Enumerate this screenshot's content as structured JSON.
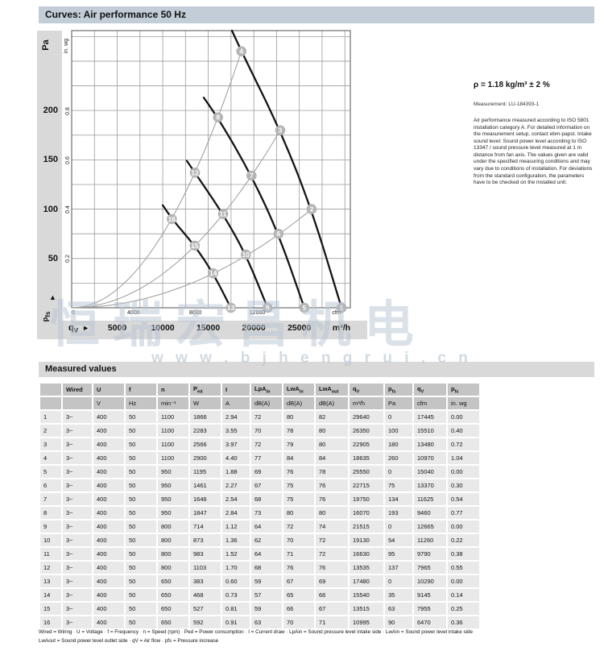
{
  "page": {
    "title_bar": "Curves: Air performance 50 Hz",
    "watermark_line1": "恒瑞宏昌机电",
    "watermark_line2": "w w w . b j h e n g r u i . c n"
  },
  "right_panel": {
    "density_line": "ρ = 1.18 kg/m³ ± 2 %",
    "measurement_line": "Measurement: LU-184393-1",
    "note": "Air performance measured according to ISO 5801 installation category A. For detailed information on the measurement setup, contact ebm-papst. Intake sound level: Sound power level according to ISO 13347 / sound pressure level measured at 1 m distance from fan axis. The values given are valid under the specified measuring conditions and may vary due to conditions of installation. For deviations from the standard configuration, the parameters have to be checked on the installed unit."
  },
  "chart_data": {
    "type": "line",
    "title": "Curves: Air performance 50 Hz",
    "x_axis": {
      "quantity_symbol": "q",
      "quantity_sub": "V",
      "arrow": "►",
      "primary_unit": "m³/h",
      "primary_ticks": [
        5000,
        10000,
        15000,
        20000,
        25000
      ],
      "secondary_unit": "cfm",
      "secondary_ticks": [
        0,
        4000,
        8000,
        12000
      ],
      "max_m3h": 30600,
      "m3h_per_cfm": 1.699
    },
    "y_axis": {
      "quantity_symbol": "p",
      "quantity_sub": "fs",
      "arrow": "▲",
      "primary_unit": "Pa",
      "primary_ticks": [
        50,
        100,
        150,
        200
      ],
      "secondary_unit": "in. wg",
      "secondary_ticks": [
        0.2,
        0.4,
        0.6,
        0.8
      ],
      "max_pa": 281,
      "pa_per_inwg": 248.84
    },
    "grid": {
      "x_step_m3h": 2500,
      "y_step_pa": 25
    },
    "fan_curves": [
      {
        "rpm": 1100,
        "start_point": [
          17600,
          281
        ],
        "points": [
          {
            "n": 4,
            "qv": 18635,
            "pa": 260
          },
          {
            "n": 3,
            "qv": 22905,
            "pa": 180
          },
          {
            "n": 2,
            "qv": 26350,
            "pa": 100
          },
          {
            "n": 1,
            "qv": 29640,
            "pa": 0
          }
        ]
      },
      {
        "rpm": 950,
        "start_point": [
          14500,
          213
        ],
        "points": [
          {
            "n": 8,
            "qv": 16070,
            "pa": 193
          },
          {
            "n": 7,
            "qv": 19750,
            "pa": 134
          },
          {
            "n": 6,
            "qv": 22715,
            "pa": 75
          },
          {
            "n": 5,
            "qv": 25550,
            "pa": 0
          }
        ]
      },
      {
        "rpm": 800,
        "start_point": [
          12650,
          149
        ],
        "points": [
          {
            "n": 12,
            "qv": 13535,
            "pa": 137
          },
          {
            "n": 11,
            "qv": 16630,
            "pa": 95
          },
          {
            "n": 10,
            "qv": 19130,
            "pa": 54
          },
          {
            "n": 9,
            "qv": 21515,
            "pa": 0
          }
        ]
      },
      {
        "rpm": 650,
        "start_point": [
          10000,
          104
        ],
        "points": [
          {
            "n": 16,
            "qv": 10995,
            "pa": 90
          },
          {
            "n": 15,
            "qv": 13515,
            "pa": 63
          },
          {
            "n": 14,
            "qv": 15540,
            "pa": 35
          },
          {
            "n": 13,
            "qv": 17480,
            "pa": 0
          }
        ]
      }
    ],
    "system_curves_through_points": [
      [
        4,
        8,
        12,
        16
      ],
      [
        3,
        7,
        11,
        15
      ],
      [
        2,
        6,
        10,
        14
      ],
      [
        1,
        5,
        9,
        13
      ]
    ]
  },
  "measured_values": {
    "title": "Measured values",
    "columns": [
      {
        "main": "",
        "sub": ""
      },
      {
        "main": "Wired",
        "sub": ""
      },
      {
        "main": "U",
        "sub": ""
      },
      {
        "main": "f",
        "sub": ""
      },
      {
        "main": "n",
        "sub": ""
      },
      {
        "main": "P",
        "sub": "ed"
      },
      {
        "main": "I",
        "sub": ""
      },
      {
        "main": "LpA",
        "sub": "in"
      },
      {
        "main": "LwA",
        "sub": "in"
      },
      {
        "main": "LwA",
        "sub": "out"
      },
      {
        "main": "q",
        "sub": "V"
      },
      {
        "main": "p",
        "sub": "fs"
      },
      {
        "main": "q",
        "sub": "V"
      },
      {
        "main": "p",
        "sub": "fs"
      }
    ],
    "units": [
      "",
      "",
      "V",
      "Hz",
      "min⁻¹",
      "W",
      "A",
      "dB(A)",
      "dB(A)",
      "dB(A)",
      "m³/h",
      "Pa",
      "cfm",
      "in. wg"
    ],
    "rows": [
      [
        "1",
        "3~",
        "400",
        "50",
        "1100",
        "1866",
        "2.94",
        "72",
        "80",
        "82",
        "29640",
        "0",
        "17445",
        "0.00"
      ],
      [
        "2",
        "3~",
        "400",
        "50",
        "1100",
        "2283",
        "3.55",
        "70",
        "78",
        "80",
        "26350",
        "100",
        "15510",
        "0.40"
      ],
      [
        "3",
        "3~",
        "400",
        "50",
        "1100",
        "2566",
        "3.97",
        "72",
        "79",
        "80",
        "22905",
        "180",
        "13480",
        "0.72"
      ],
      [
        "4",
        "3~",
        "400",
        "50",
        "1100",
        "2900",
        "4.40",
        "77",
        "84",
        "84",
        "18635",
        "260",
        "10970",
        "1.04"
      ],
      [
        "5",
        "3~",
        "400",
        "50",
        "950",
        "1195",
        "1.88",
        "69",
        "76",
        "78",
        "25550",
        "0",
        "15040",
        "0.00"
      ],
      [
        "6",
        "3~",
        "400",
        "50",
        "950",
        "1461",
        "2.27",
        "67",
        "75",
        "76",
        "22715",
        "75",
        "13370",
        "0.30"
      ],
      [
        "7",
        "3~",
        "400",
        "50",
        "950",
        "1646",
        "2.54",
        "68",
        "75",
        "76",
        "19750",
        "134",
        "11625",
        "0.54"
      ],
      [
        "8",
        "3~",
        "400",
        "50",
        "950",
        "1847",
        "2.84",
        "73",
        "80",
        "80",
        "16070",
        "193",
        "9460",
        "0.77"
      ],
      [
        "9",
        "3~",
        "400",
        "50",
        "800",
        "714",
        "1.12",
        "64",
        "72",
        "74",
        "21515",
        "0",
        "12665",
        "0.00"
      ],
      [
        "10",
        "3~",
        "400",
        "50",
        "800",
        "873",
        "1.36",
        "62",
        "70",
        "72",
        "19130",
        "54",
        "11260",
        "0.22"
      ],
      [
        "11",
        "3~",
        "400",
        "50",
        "800",
        "983",
        "1.52",
        "64",
        "71",
        "72",
        "16630",
        "95",
        "9790",
        "0.38"
      ],
      [
        "12",
        "3~",
        "400",
        "50",
        "800",
        "1103",
        "1.70",
        "68",
        "76",
        "76",
        "13535",
        "137",
        "7965",
        "0.55"
      ],
      [
        "13",
        "3~",
        "400",
        "50",
        "650",
        "383",
        "0.60",
        "59",
        "67",
        "69",
        "17480",
        "0",
        "10290",
        "0.00"
      ],
      [
        "14",
        "3~",
        "400",
        "50",
        "650",
        "468",
        "0.73",
        "57",
        "65",
        "66",
        "15540",
        "35",
        "9145",
        "0.14"
      ],
      [
        "15",
        "3~",
        "400",
        "50",
        "650",
        "527",
        "0.81",
        "59",
        "66",
        "67",
        "13515",
        "63",
        "7955",
        "0.25"
      ],
      [
        "16",
        "3~",
        "400",
        "50",
        "650",
        "592",
        "0.91",
        "63",
        "70",
        "71",
        "10995",
        "90",
        "6470",
        "0.36"
      ]
    ]
  },
  "footer": {
    "line1": "Wired = Wiring · U = Voltage · f = Frequency · n = Speed (rpm) · Ped = Power consumption · I = Current draw · LpAin = Sound pressure level intake side · LwAin = Sound power level intake side",
    "line2": "LwAout = Sound power level outlet side · qV = Air flow · pfs = Pressure increase"
  }
}
